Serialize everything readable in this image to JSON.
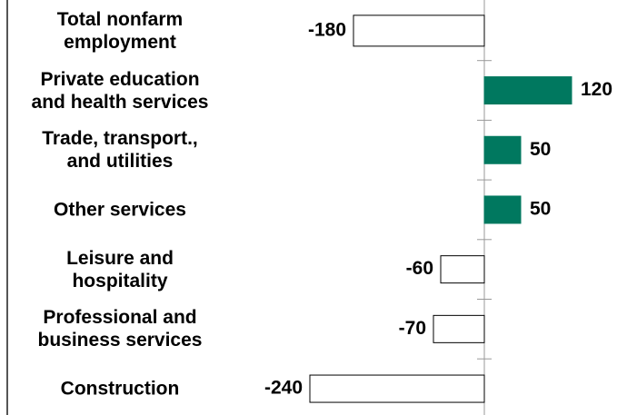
{
  "chart_data": {
    "type": "hbar",
    "categories": [
      "Total nonfarm\nemployment",
      "Private education\nand health services",
      "Trade, transport.,\nand utilities",
      "Other services",
      "Leisure and\nhospitality",
      "Professional and\nbusiness services",
      "Construction"
    ],
    "values": [
      -180,
      120,
      50,
      50,
      -60,
      -70,
      -240
    ],
    "positive_color": "#00785f",
    "negative_color": "#ffffff",
    "xlim": [
      -300,
      180
    ]
  }
}
